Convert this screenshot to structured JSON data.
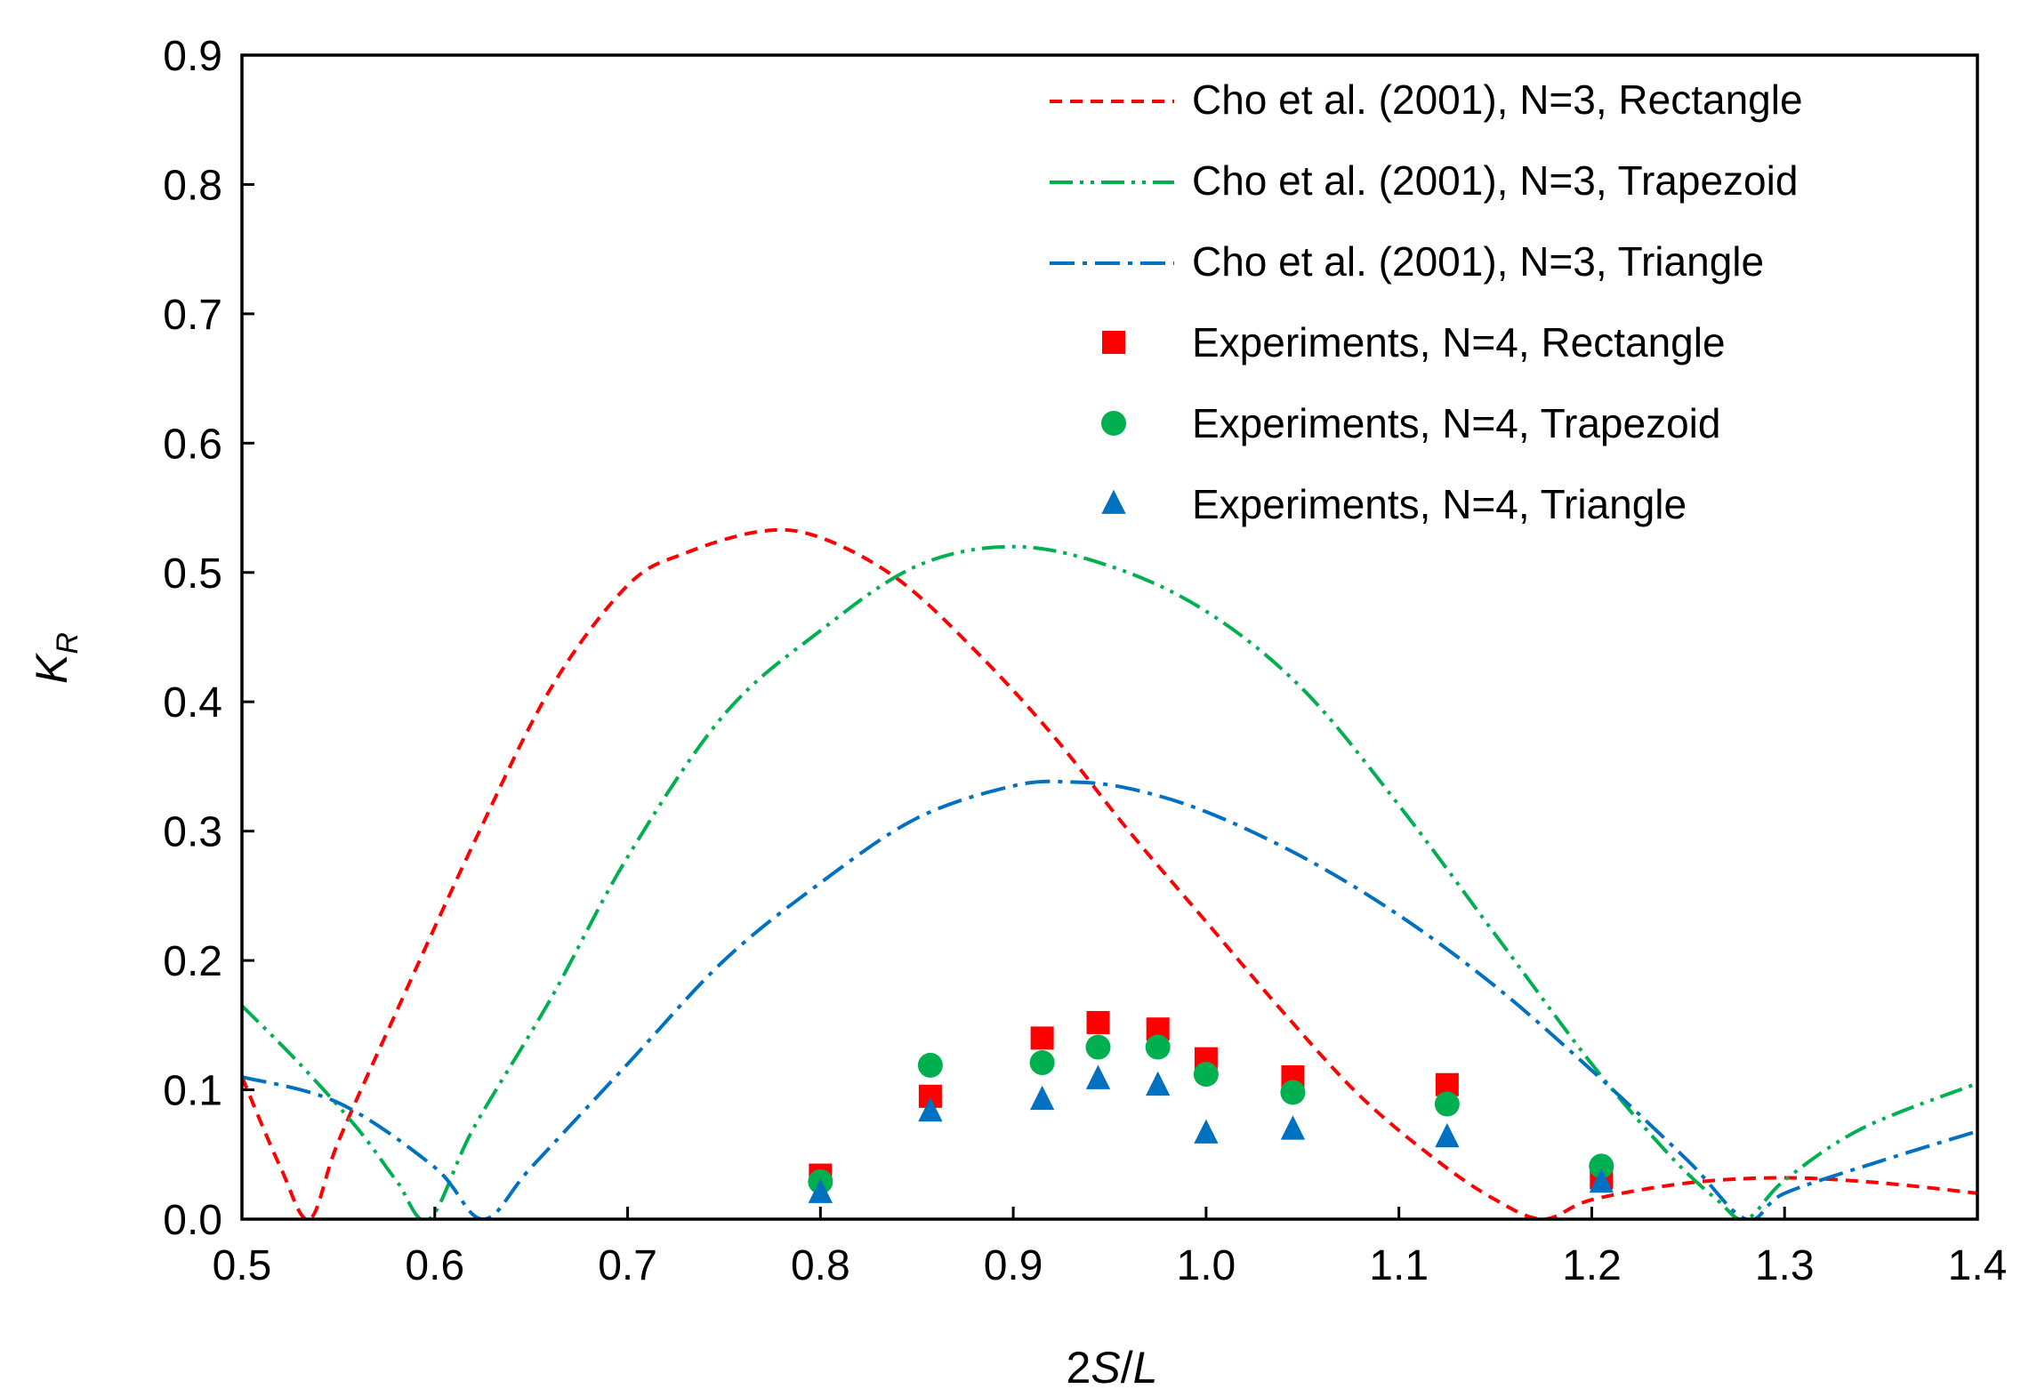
{
  "chart_data": {
    "type": "scatter",
    "title": "",
    "xlabel": "2S/L",
    "ylabel": "K_R",
    "xlim": [
      0.5,
      1.4
    ],
    "ylim": [
      0.0,
      0.9
    ],
    "xticks": [
      "0.5",
      "0.6",
      "0.7",
      "0.8",
      "0.9",
      "1.0",
      "1.1",
      "1.2",
      "1.3",
      "1.4"
    ],
    "yticks": [
      "0.0",
      "0.1",
      "0.2",
      "0.3",
      "0.4",
      "0.5",
      "0.6",
      "0.7",
      "0.8",
      "0.9"
    ],
    "legend_position": "top-right",
    "grid": false,
    "series": [
      {
        "name": "Cho et al. (2001), N=3, Rectangle",
        "kind": "line",
        "style": "dashed",
        "color": "#ff0000",
        "x": [
          0.5,
          0.52,
          0.535,
          0.55,
          0.58,
          0.62,
          0.66,
          0.7,
          0.73,
          0.77,
          0.8,
          0.84,
          0.88,
          0.92,
          0.96,
          1.0,
          1.04,
          1.08,
          1.12,
          1.15,
          1.175,
          1.2,
          1.25,
          1.3,
          1.35,
          1.4
        ],
        "y": [
          0.11,
          0.04,
          0.0,
          0.06,
          0.16,
          0.29,
          0.41,
          0.49,
          0.515,
          0.532,
          0.527,
          0.495,
          0.44,
          0.375,
          0.3,
          0.23,
          0.16,
          0.095,
          0.045,
          0.015,
          0.0,
          0.015,
          0.028,
          0.032,
          0.028,
          0.02
        ]
      },
      {
        "name": "Cho et al. (2001), N=3, Trapezoid",
        "kind": "line",
        "style": "dash-dot-dot",
        "color": "#00b050",
        "x": [
          0.5,
          0.53,
          0.56,
          0.58,
          0.597,
          0.62,
          0.66,
          0.7,
          0.75,
          0.8,
          0.85,
          0.9,
          0.95,
          1.0,
          1.05,
          1.1,
          1.15,
          1.2,
          1.24,
          1.265,
          1.28,
          1.3,
          1.34,
          1.4
        ],
        "y": [
          0.165,
          0.12,
          0.07,
          0.03,
          0.0,
          0.07,
          0.17,
          0.28,
          0.39,
          0.455,
          0.505,
          0.52,
          0.505,
          0.47,
          0.41,
          0.32,
          0.22,
          0.12,
          0.05,
          0.015,
          0.0,
          0.03,
          0.07,
          0.105
        ]
      },
      {
        "name": "Cho et al. (2001), N=3, Triangle",
        "kind": "line",
        "style": "dash-dot",
        "color": "#0070c0",
        "x": [
          0.5,
          0.55,
          0.6,
          0.625,
          0.65,
          0.7,
          0.75,
          0.8,
          0.85,
          0.9,
          0.93,
          0.96,
          1.0,
          1.05,
          1.1,
          1.15,
          1.2,
          1.25,
          1.28,
          1.3,
          1.35,
          1.4
        ],
        "y": [
          0.11,
          0.09,
          0.04,
          0.0,
          0.04,
          0.12,
          0.2,
          0.26,
          0.31,
          0.335,
          0.338,
          0.333,
          0.315,
          0.28,
          0.235,
          0.18,
          0.115,
          0.045,
          0.0,
          0.02,
          0.045,
          0.068
        ]
      },
      {
        "name": "Experiments, N=4, Rectangle",
        "kind": "marker",
        "marker": "square",
        "color": "#ff0000",
        "x": [
          0.8,
          0.857,
          0.915,
          0.944,
          0.975,
          1.0,
          1.045,
          1.125,
          1.205
        ],
        "y": [
          0.034,
          0.095,
          0.14,
          0.152,
          0.147,
          0.124,
          0.11,
          0.104,
          0.032
        ]
      },
      {
        "name": "Experiments, N=4, Trapezoid",
        "kind": "marker",
        "marker": "circle",
        "color": "#00b050",
        "x": [
          0.8,
          0.857,
          0.915,
          0.944,
          0.975,
          1.0,
          1.045,
          1.125,
          1.205
        ],
        "y": [
          0.029,
          0.119,
          0.121,
          0.133,
          0.133,
          0.112,
          0.098,
          0.089,
          0.041
        ]
      },
      {
        "name": "Experiments, N=4, Triangle",
        "kind": "marker",
        "marker": "triangle",
        "color": "#0070c0",
        "x": [
          0.8,
          0.857,
          0.915,
          0.944,
          0.975,
          1.0,
          1.045,
          1.125,
          1.205
        ],
        "y": [
          0.02,
          0.083,
          0.092,
          0.108,
          0.103,
          0.066,
          0.069,
          0.063,
          0.028
        ]
      }
    ]
  }
}
